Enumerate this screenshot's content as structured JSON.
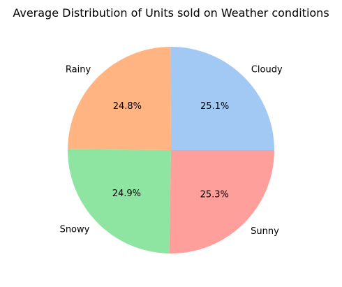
{
  "chart_data": {
    "type": "pie",
    "title": "Average Distribution of Units sold on Weather conditions",
    "categories": [
      "Cloudy",
      "Rainy",
      "Snowy",
      "Sunny"
    ],
    "values": [
      25.1,
      24.8,
      24.9,
      25.3
    ],
    "labels": [
      "25.1%",
      "24.8%",
      "24.9%",
      "25.3%"
    ],
    "start_angle_deg": 0,
    "counterclockwise": true,
    "colors": [
      "#a1c9f4",
      "#ffb482",
      "#8de5a1",
      "#ff9f9b"
    ]
  }
}
